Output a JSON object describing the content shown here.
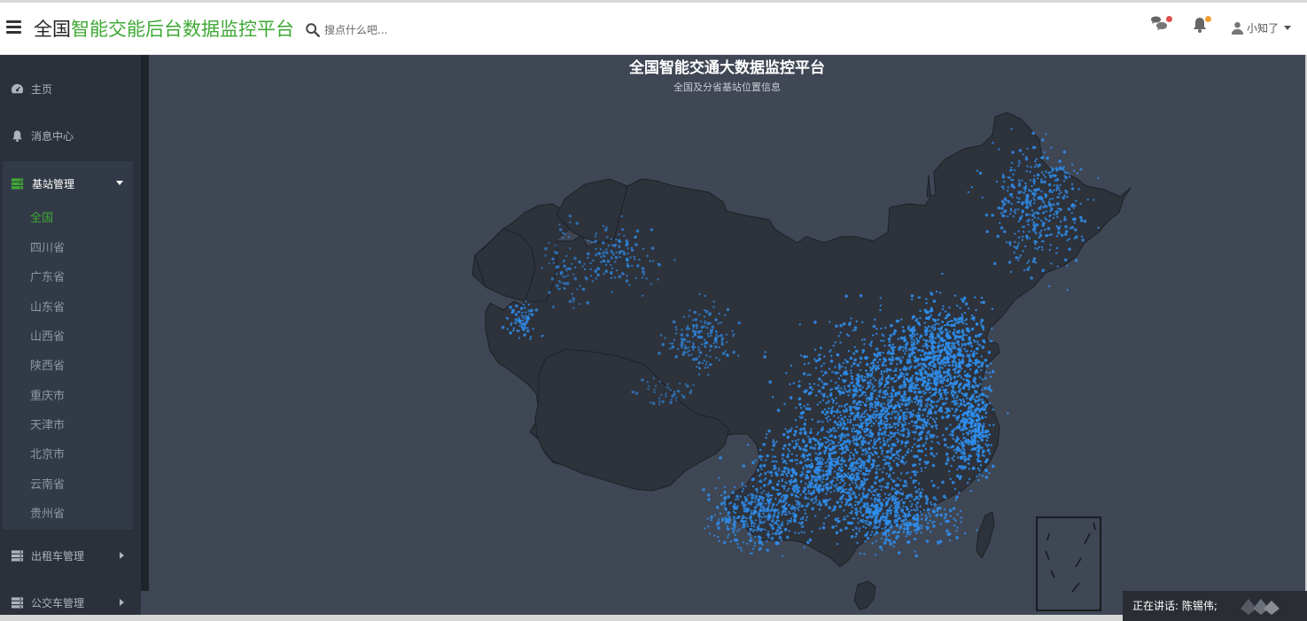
{
  "header": {
    "brand_prefix": "全国",
    "brand_highlight": "智能交能后台数据监控平台",
    "search_placeholder": "搜点什么吧...",
    "user_name": "小知了",
    "icons": {
      "menu": "hamburger-icon",
      "search": "search-icon",
      "messages": "chat-bubbles-icon",
      "notifications": "bell-icon",
      "user": "user-icon"
    },
    "badge_colors": {
      "messages": "#e14e4e",
      "notifications": "#f0a030"
    }
  },
  "sidebar": {
    "items": [
      {
        "label": "主页",
        "icon": "dashboard-icon"
      },
      {
        "label": "消息中心",
        "icon": "bell-icon"
      }
    ],
    "group": {
      "label": "基站管理",
      "icon": "server-icon",
      "expanded": true,
      "children": [
        "全国",
        "四川省",
        "广东省",
        "山东省",
        "山西省",
        "陕西省",
        "重庆市",
        "天津市",
        "北京市",
        "云南省",
        "贵州省"
      ],
      "active_index": 0
    },
    "collapsed_groups": [
      {
        "label": "出租车管理",
        "icon": "server-icon"
      },
      {
        "label": "公交车管理",
        "icon": "server-icon"
      }
    ]
  },
  "map": {
    "title": "全国智能交通大数据监控平台",
    "subtitle": "全国及分省基站位置信息",
    "land_color": "#2e323b",
    "border_color": "#1e2128",
    "point_color": "#2e8ff0",
    "background": "#3f4654"
  },
  "talk_bar": {
    "text": "正在讲话: 陈锡伟;"
  },
  "colors": {
    "accent": "#3ea934",
    "sidebar_bg": "#2b303b",
    "header_bg": "#ffffff"
  }
}
